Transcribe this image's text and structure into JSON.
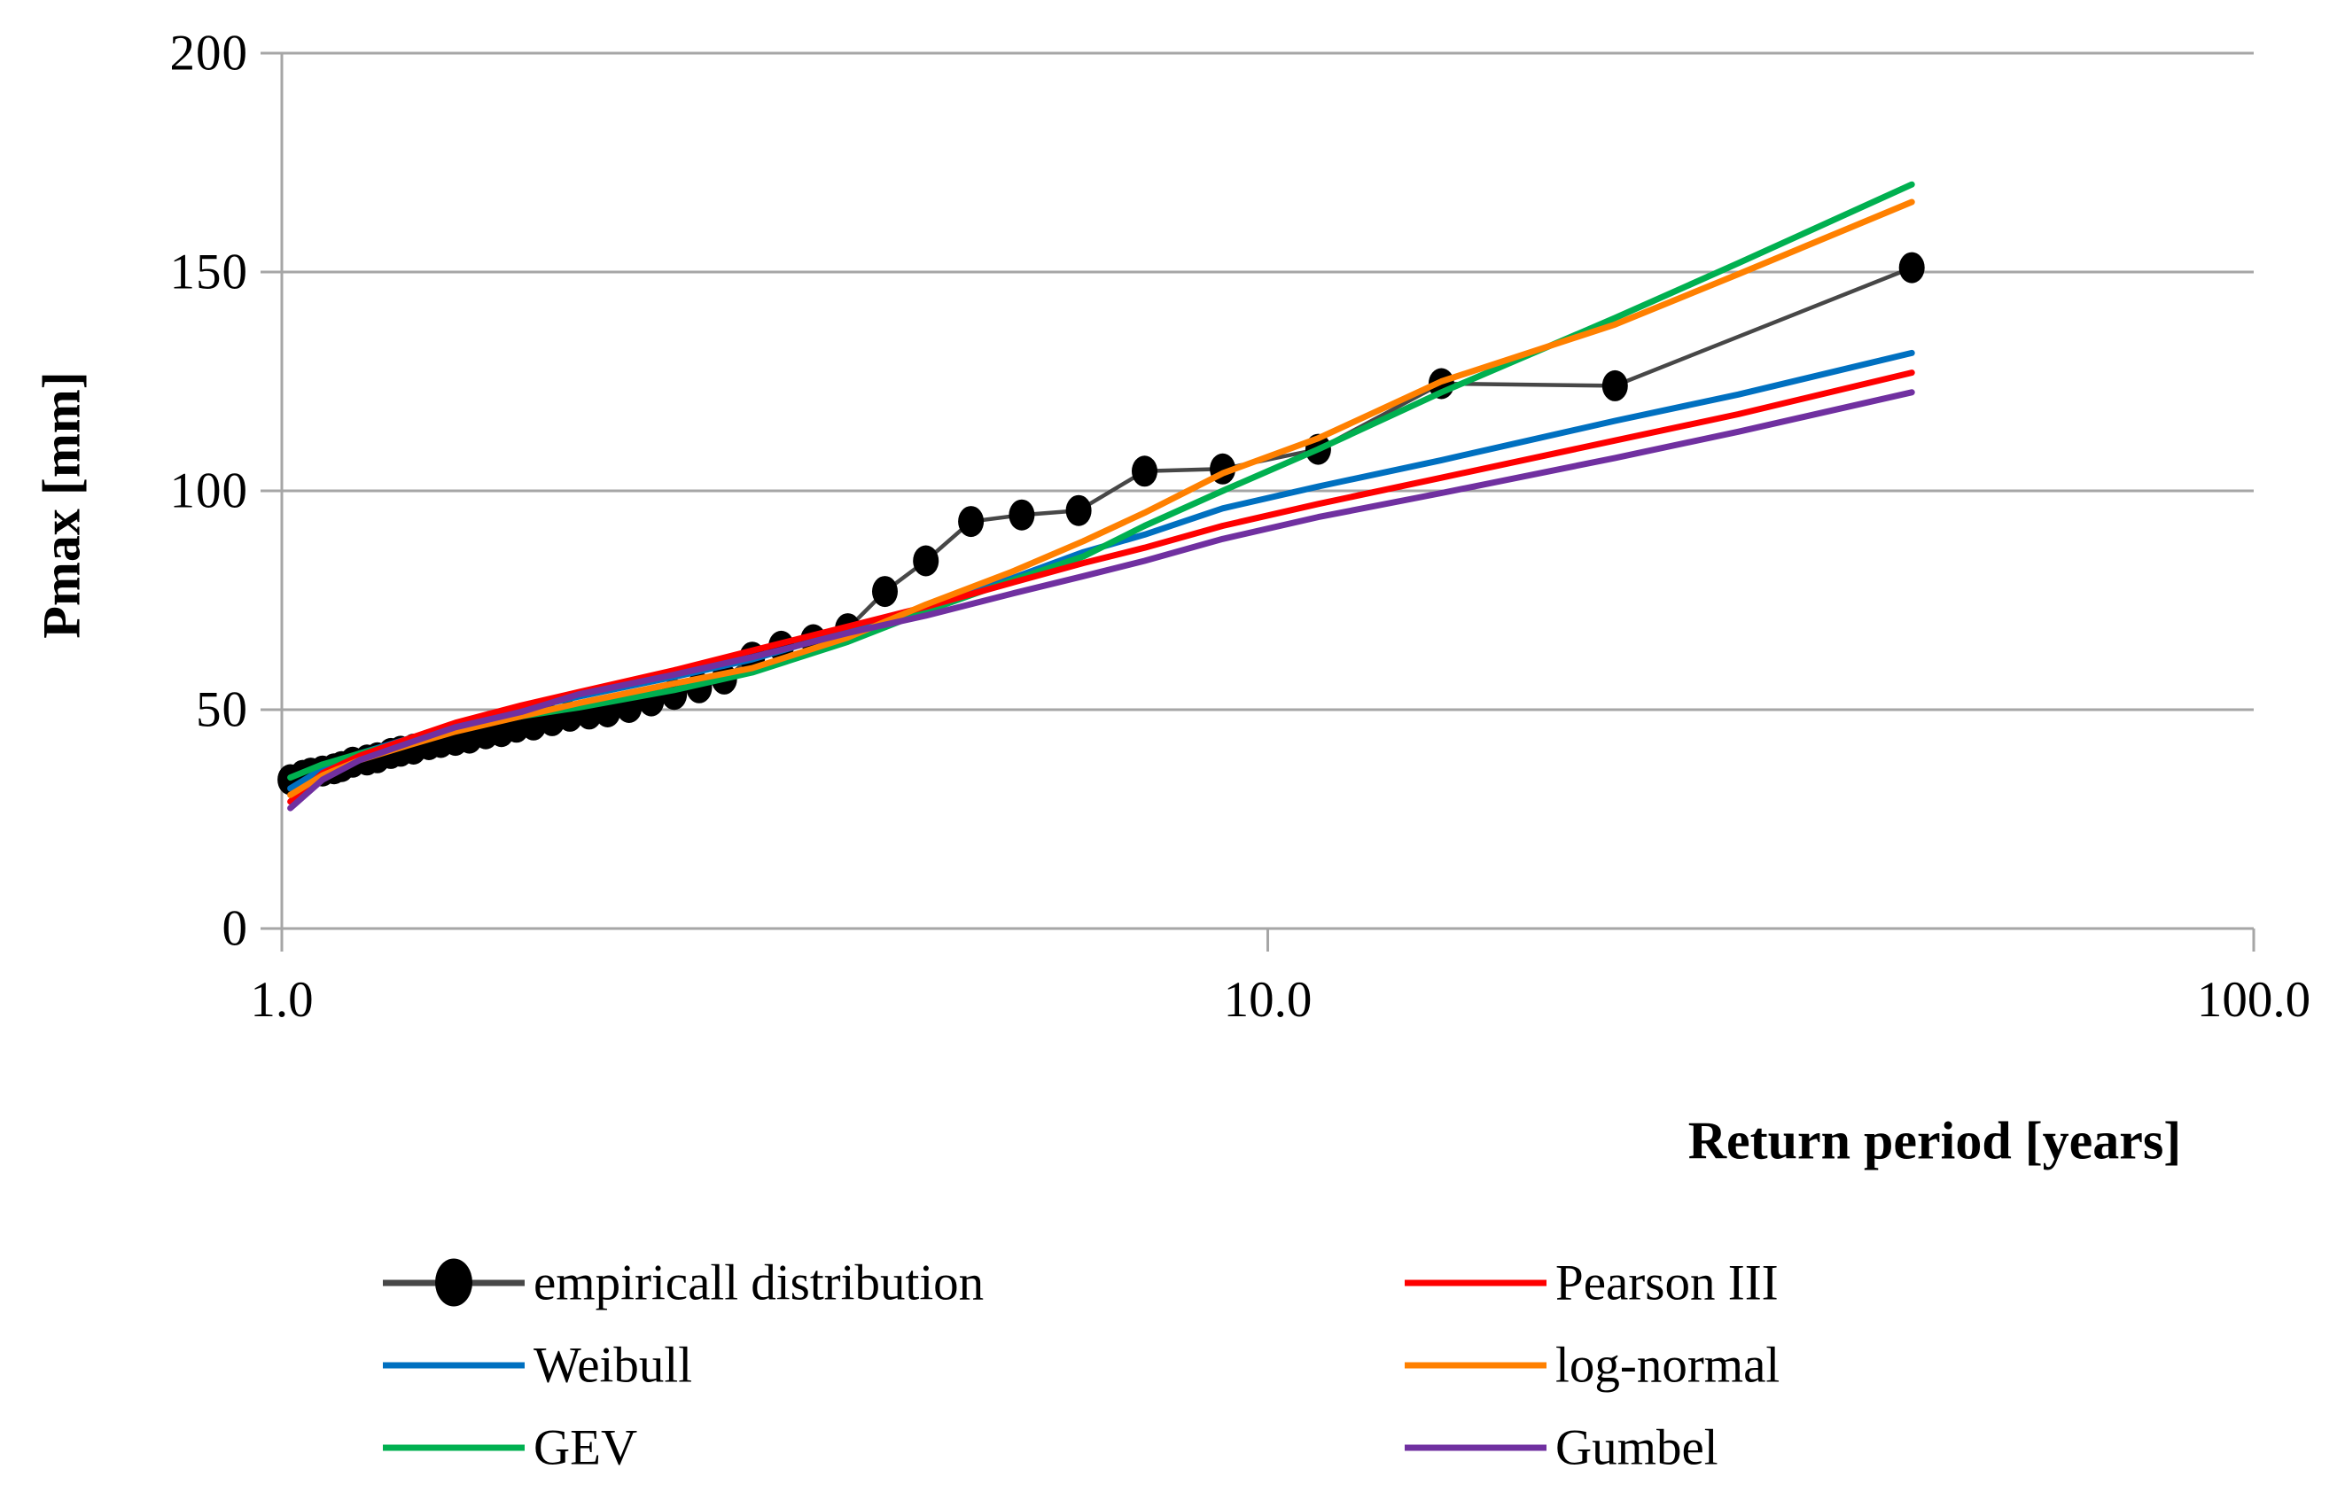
{
  "figure": {
    "x_axis_title": "Return period [years]",
    "y_axis_title": "Pmax [mm]"
  },
  "colors": {
    "grid": "#a6a6a6",
    "axis": "#a6a6a6",
    "empirical_line": "#474747",
    "empirical_marker": "#000000",
    "weibull": "#0070c0",
    "gev": "#00b050",
    "pearson": "#fe0000",
    "lognormal": "#ff8000",
    "gumbel": "#7030a0"
  },
  "legend": {
    "items": [
      {
        "key": "empirical",
        "label": "empiricall distribution",
        "column": 0,
        "row": 0
      },
      {
        "key": "weibull",
        "label": "Weibull",
        "column": 0,
        "row": 1
      },
      {
        "key": "gev",
        "label": "GEV",
        "column": 0,
        "row": 2
      },
      {
        "key": "pearson",
        "label": "Pearson III",
        "column": 1,
        "row": 0
      },
      {
        "key": "lognormal",
        "label": "log-normal",
        "column": 1,
        "row": 1
      },
      {
        "key": "gumbel",
        "label": "Gumbel",
        "column": 1,
        "row": 2
      }
    ]
  },
  "chart_data": {
    "type": "line",
    "title": "",
    "xlabel": "Return period [years]",
    "ylabel": "Pmax [mm]",
    "x_scale": "log",
    "xlim": [
      1.0,
      100.0
    ],
    "ylim": [
      0,
      200
    ],
    "x_ticks": [
      1.0,
      10.0,
      100.0
    ],
    "x_tick_labels": [
      "1.0",
      "10.0",
      "100.0"
    ],
    "y_ticks": [
      0,
      50,
      100,
      150,
      200
    ],
    "y_tick_labels": [
      "0",
      "50",
      "100",
      "150",
      "200"
    ],
    "grid": "horizontal",
    "legend_position": "bottom",
    "series": [
      {
        "name": "empiricall distribution",
        "key": "empirical",
        "marker": "ellipse",
        "points": [
          [
            1.02,
            34
          ],
          [
            1.05,
            35
          ],
          [
            1.07,
            35.5
          ],
          [
            1.1,
            36
          ],
          [
            1.13,
            36.5
          ],
          [
            1.15,
            37
          ],
          [
            1.18,
            38
          ],
          [
            1.22,
            38.5
          ],
          [
            1.25,
            39
          ],
          [
            1.29,
            40
          ],
          [
            1.32,
            40.5
          ],
          [
            1.36,
            41
          ],
          [
            1.41,
            42
          ],
          [
            1.45,
            42.5
          ],
          [
            1.5,
            43
          ],
          [
            1.55,
            43.5
          ],
          [
            1.61,
            44.5
          ],
          [
            1.67,
            45
          ],
          [
            1.73,
            46
          ],
          [
            1.8,
            46.5
          ],
          [
            1.88,
            47.5
          ],
          [
            1.96,
            48.5
          ],
          [
            2.05,
            49
          ],
          [
            2.14,
            49.5
          ],
          [
            2.25,
            50.5
          ],
          [
            2.37,
            52
          ],
          [
            2.5,
            53.5
          ],
          [
            2.65,
            55
          ],
          [
            2.81,
            57
          ],
          [
            3.0,
            62
          ],
          [
            3.21,
            64.5
          ],
          [
            3.46,
            66
          ],
          [
            3.75,
            68.5
          ],
          [
            4.09,
            77
          ],
          [
            4.5,
            84
          ],
          [
            5.0,
            93
          ],
          [
            5.63,
            94.5
          ],
          [
            6.43,
            95.5
          ],
          [
            7.5,
            104.5
          ],
          [
            9.0,
            105
          ],
          [
            11.25,
            109.5
          ],
          [
            15.0,
            124.5
          ],
          [
            22.5,
            124
          ],
          [
            45.0,
            151
          ]
        ]
      },
      {
        "name": "Weibull",
        "key": "weibull",
        "marker": "none",
        "points": [
          [
            1.02,
            32
          ],
          [
            1.1,
            36.5
          ],
          [
            1.2,
            40
          ],
          [
            1.35,
            43.5
          ],
          [
            1.5,
            46.5
          ],
          [
            1.75,
            50
          ],
          [
            2,
            53
          ],
          [
            2.5,
            57.5
          ],
          [
            3,
            61.5
          ],
          [
            3.75,
            68
          ],
          [
            4.5,
            73.5
          ],
          [
            5.5,
            80
          ],
          [
            6.5,
            86
          ],
          [
            7.5,
            90
          ],
          [
            9,
            96
          ],
          [
            11.25,
            101
          ],
          [
            15,
            107
          ],
          [
            22.5,
            116
          ],
          [
            30,
            122
          ],
          [
            45,
            131.5
          ]
        ]
      },
      {
        "name": "GEV",
        "key": "gev",
        "marker": "none",
        "points": [
          [
            1.02,
            34.5
          ],
          [
            1.1,
            37.5
          ],
          [
            1.2,
            40
          ],
          [
            1.35,
            43
          ],
          [
            1.5,
            45.5
          ],
          [
            1.75,
            48.5
          ],
          [
            2,
            50.5
          ],
          [
            2.5,
            54.5
          ],
          [
            3,
            58.5
          ],
          [
            3.75,
            65.5
          ],
          [
            4.5,
            72.5
          ],
          [
            5.5,
            79.5
          ],
          [
            6.5,
            85
          ],
          [
            7.5,
            92
          ],
          [
            9,
            100
          ],
          [
            11.25,
            109.5
          ],
          [
            15,
            122.5
          ],
          [
            22.5,
            139.5
          ],
          [
            30,
            152
          ],
          [
            45,
            170
          ]
        ]
      },
      {
        "name": "Pearson III",
        "key": "pearson",
        "marker": "none",
        "points": [
          [
            1.02,
            29
          ],
          [
            1.1,
            35.5
          ],
          [
            1.2,
            39.5
          ],
          [
            1.35,
            43.5
          ],
          [
            1.5,
            47
          ],
          [
            1.75,
            51
          ],
          [
            2,
            54
          ],
          [
            2.5,
            59
          ],
          [
            3,
            63.5
          ],
          [
            3.75,
            69
          ],
          [
            4.5,
            73.5
          ],
          [
            5.5,
            79
          ],
          [
            6.5,
            83.5
          ],
          [
            7.5,
            87
          ],
          [
            9,
            92
          ],
          [
            11.25,
            97
          ],
          [
            15,
            103
          ],
          [
            22.5,
            111.5
          ],
          [
            30,
            117.5
          ],
          [
            45,
            127
          ]
        ]
      },
      {
        "name": "log-normal",
        "key": "lognormal",
        "marker": "none",
        "points": [
          [
            1.02,
            30.5
          ],
          [
            1.1,
            35
          ],
          [
            1.2,
            38.5
          ],
          [
            1.35,
            42
          ],
          [
            1.5,
            45
          ],
          [
            1.75,
            48.5
          ],
          [
            2,
            51.5
          ],
          [
            2.5,
            56
          ],
          [
            3,
            59.5
          ],
          [
            3.75,
            66.5
          ],
          [
            4.5,
            74
          ],
          [
            5.5,
            81.5
          ],
          [
            6.5,
            88.5
          ],
          [
            7.5,
            95
          ],
          [
            9,
            104
          ],
          [
            11.25,
            112
          ],
          [
            15,
            125
          ],
          [
            22.5,
            138
          ],
          [
            30,
            149.5
          ],
          [
            45,
            166
          ]
        ]
      },
      {
        "name": "Gumbel",
        "key": "gumbel",
        "marker": "none",
        "points": [
          [
            1.02,
            27.5
          ],
          [
            1.1,
            34
          ],
          [
            1.2,
            38.5
          ],
          [
            1.35,
            42.5
          ],
          [
            1.5,
            46
          ],
          [
            1.75,
            49.5
          ],
          [
            2,
            53.5
          ],
          [
            2.5,
            58
          ],
          [
            3,
            62
          ],
          [
            3.75,
            67.5
          ],
          [
            4.5,
            71.5
          ],
          [
            5.5,
            76.5
          ],
          [
            6.5,
            80.5
          ],
          [
            7.5,
            84
          ],
          [
            9,
            89
          ],
          [
            11.25,
            94
          ],
          [
            15,
            99.5
          ],
          [
            22.5,
            107.5
          ],
          [
            30,
            113.5
          ],
          [
            45,
            122.5
          ]
        ]
      }
    ]
  }
}
